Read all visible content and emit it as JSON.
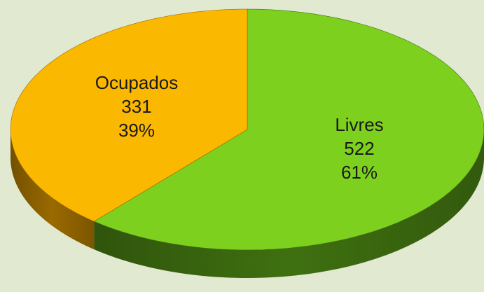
{
  "chart_data": {
    "type": "pie3d",
    "categories": [
      "Ocupados",
      "Livres"
    ],
    "values": [
      331,
      522
    ],
    "percent_labels": [
      "39%",
      "61%"
    ],
    "colors": [
      "#fbb800",
      "#7ed01f"
    ],
    "side_colors": [
      "#9a6a00",
      "#3f7010"
    ]
  }
}
